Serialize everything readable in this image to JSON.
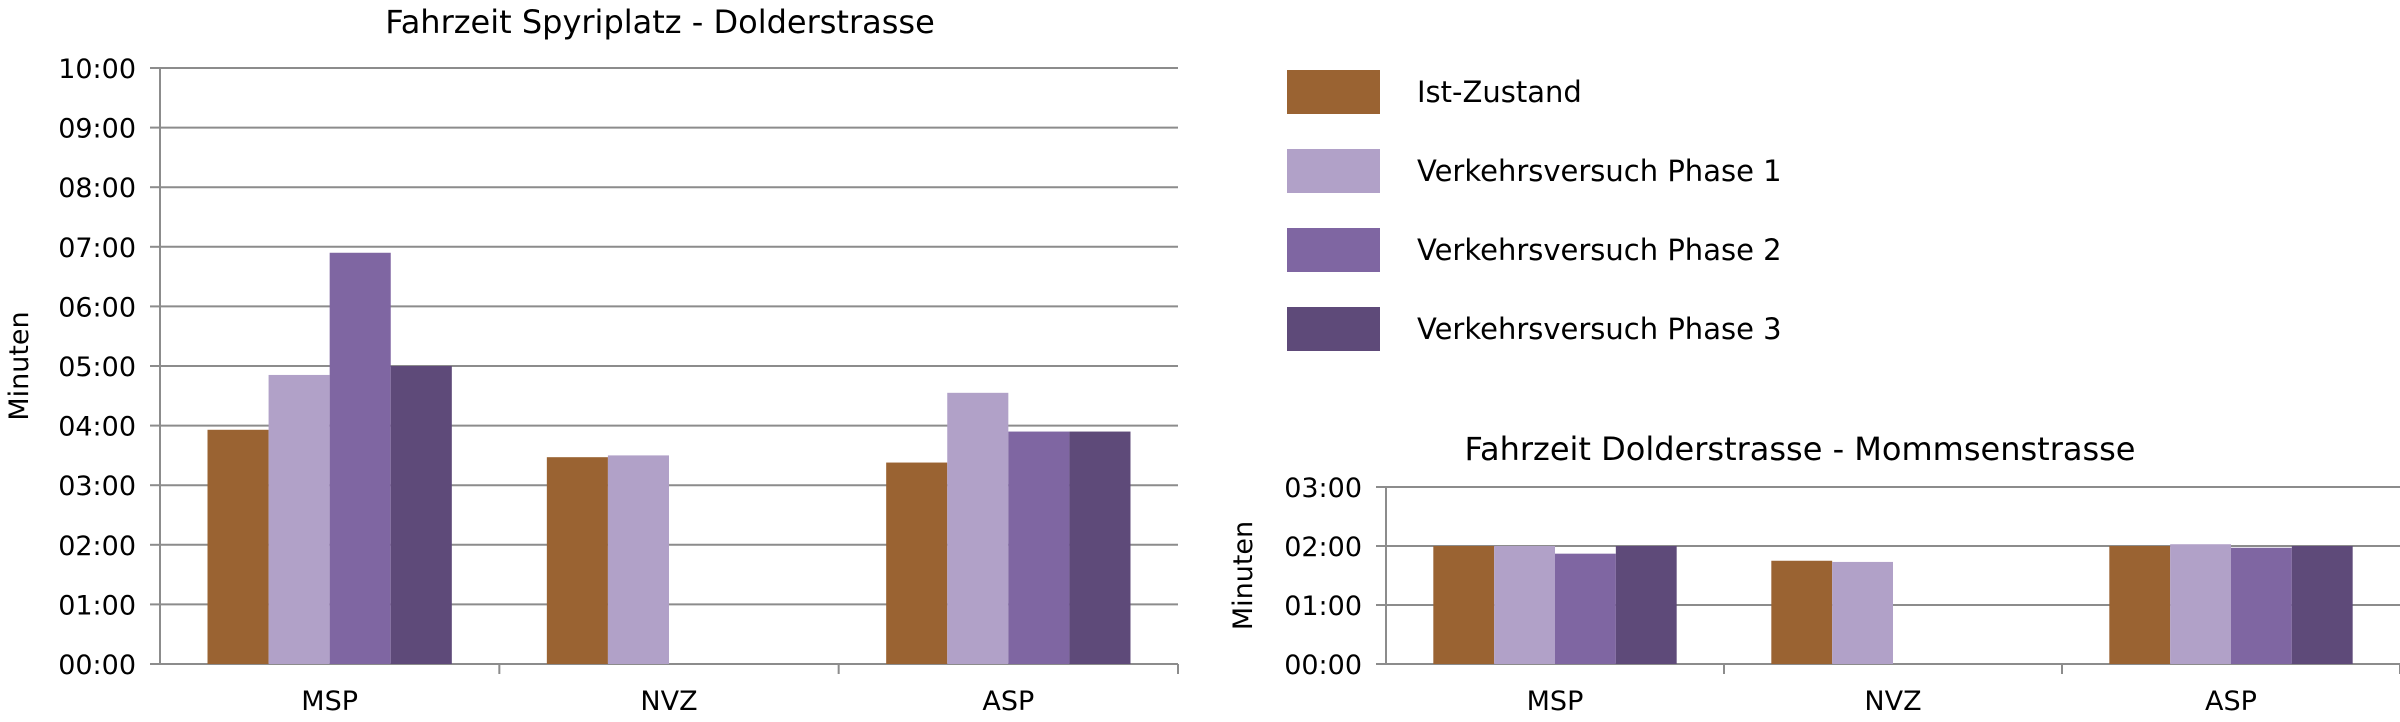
{
  "legend": {
    "items": [
      {
        "label": "Ist-Zustand",
        "color": "#9a6332"
      },
      {
        "label": "Verkehrsversuch Phase 1",
        "color": "#b1a1c8"
      },
      {
        "label": "Verkehrsversuch Phase 2",
        "color": "#7f66a2"
      },
      {
        "label": "Verkehrsversuch Phase 3",
        "color": "#5e4a79"
      }
    ]
  },
  "chart_data": [
    {
      "type": "bar",
      "title": "Fahrzeit Spyriplatz - Dolderstrasse",
      "xlabel": "",
      "ylabel": "Minuten",
      "categories": [
        "MSP",
        "NVZ",
        "ASP"
      ],
      "ylim": [
        0,
        10
      ],
      "y_ticks": [
        "00:00",
        "01:00",
        "02:00",
        "03:00",
        "04:00",
        "05:00",
        "06:00",
        "07:00",
        "08:00",
        "09:00",
        "10:00"
      ],
      "grid": true,
      "series": [
        {
          "name": "Ist-Zustand",
          "values": [
            3.93,
            3.47,
            3.38
          ]
        },
        {
          "name": "Verkehrsversuch Phase 1",
          "values": [
            4.85,
            3.5,
            4.55
          ]
        },
        {
          "name": "Verkehrsversuch Phase 2",
          "values": [
            6.9,
            null,
            3.9
          ]
        },
        {
          "name": "Verkehrsversuch Phase 3",
          "values": [
            5.0,
            null,
            3.9
          ]
        }
      ]
    },
    {
      "type": "bar",
      "title": "Fahrzeit Dolderstrasse - Mommsenstrasse",
      "xlabel": "",
      "ylabel": "Minuten",
      "categories": [
        "MSP",
        "NVZ",
        "ASP"
      ],
      "ylim": [
        0,
        3
      ],
      "y_ticks": [
        "00:00",
        "01:00",
        "02:00",
        "03:00"
      ],
      "grid": true,
      "series": [
        {
          "name": "Ist-Zustand",
          "values": [
            2.0,
            1.75,
            2.0
          ]
        },
        {
          "name": "Verkehrsversuch Phase 1",
          "values": [
            2.0,
            1.73,
            2.03
          ]
        },
        {
          "name": "Verkehrsversuch Phase 2",
          "values": [
            1.87,
            null,
            1.97
          ]
        },
        {
          "name": "Verkehrsversuch Phase 3",
          "values": [
            2.0,
            null,
            2.0
          ]
        }
      ]
    }
  ]
}
